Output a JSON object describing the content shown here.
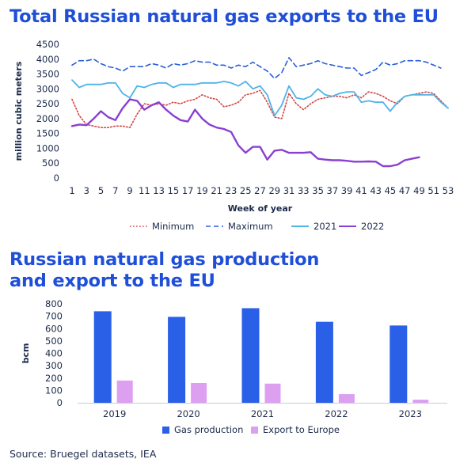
{
  "charts": [
    {
      "title": "Total Russian natural gas exports to the EU",
      "chart_data": {
        "type": "line",
        "title": "Total Russian natural gas exports to the EU",
        "xlabel": "Week of year",
        "ylabel": "million cubic meters",
        "xlim": [
          1,
          53
        ],
        "ylim": [
          0,
          4500
        ],
        "x_ticks": [
          "1",
          "3",
          "5",
          "7",
          "9",
          "11",
          "13",
          "15",
          "17",
          "19",
          "21",
          "23",
          "25",
          "27",
          "29",
          "31",
          "33",
          "35",
          "37",
          "39",
          "41",
          "43",
          "45",
          "47",
          "49",
          "51",
          "53"
        ],
        "y_ticks": [
          "0",
          "500",
          "1000",
          "1500",
          "2000",
          "2500",
          "3000",
          "3500",
          "4000",
          "4500"
        ],
        "grid": false,
        "legend": "bottom",
        "series": [
          {
            "name": "Minimum",
            "color": "#d64545",
            "style": "dotted",
            "x": [
              1,
              2,
              3,
              4,
              5,
              6,
              7,
              8,
              9,
              10,
              11,
              12,
              13,
              14,
              15,
              16,
              17,
              18,
              19,
              20,
              21,
              22,
              23,
              24,
              25,
              26,
              27,
              28,
              29,
              30,
              31,
              32,
              33,
              34,
              35,
              36,
              37,
              38,
              39,
              40,
              41,
              42,
              43,
              44,
              45,
              46,
              47,
              48,
              49,
              50,
              51,
              52,
              53
            ],
            "values": [
              2650,
              2100,
              1800,
              1750,
              1700,
              1700,
              1750,
              1750,
              1700,
              2150,
              2500,
              2450,
              2500,
              2450,
              2550,
              2500,
              2600,
              2650,
              2800,
              2700,
              2650,
              2400,
              2450,
              2550,
              2800,
              2850,
              2950,
              2550,
              2050,
              2000,
              2850,
              2500,
              2300,
              2500,
              2650,
              2700,
              2750,
              2750,
              2700,
              2800,
              2700,
              2900,
              2850,
              2750,
              2600,
              2500,
              2750,
              2800,
              2850,
              2900,
              2850,
              2600,
              2350
            ]
          },
          {
            "name": "Maximum",
            "color": "#2a5fd6",
            "style": "dashed",
            "x": [
              1,
              2,
              3,
              4,
              5,
              6,
              7,
              8,
              9,
              10,
              11,
              12,
              13,
              14,
              15,
              16,
              17,
              18,
              19,
              20,
              21,
              22,
              23,
              24,
              25,
              26,
              27,
              28,
              29,
              30,
              31,
              32,
              33,
              34,
              35,
              36,
              37,
              38,
              39,
              40,
              41,
              42,
              43,
              44,
              45,
              46,
              47,
              48,
              49,
              50,
              51,
              52
            ],
            "values": [
              3800,
              3950,
              3950,
              4000,
              3850,
              3750,
              3700,
              3600,
              3750,
              3750,
              3750,
              3850,
              3800,
              3700,
              3850,
              3800,
              3850,
              3950,
              3900,
              3900,
              3800,
              3800,
              3700,
              3800,
              3750,
              3900,
              3750,
              3600,
              3350,
              3550,
              4050,
              3750,
              3800,
              3850,
              3950,
              3850,
              3800,
              3750,
              3700,
              3700,
              3450,
              3550,
              3650,
              3900,
              3800,
              3850,
              3950,
              3950,
              3950,
              3900,
              3800,
              3700
            ]
          },
          {
            "name": "2021",
            "color": "#4fb3e8",
            "style": "solid",
            "x": [
              1,
              2,
              3,
              4,
              5,
              6,
              7,
              8,
              9,
              10,
              11,
              12,
              13,
              14,
              15,
              16,
              17,
              18,
              19,
              20,
              21,
              22,
              23,
              24,
              25,
              26,
              27,
              28,
              29,
              30,
              31,
              32,
              33,
              34,
              35,
              36,
              37,
              38,
              39,
              40,
              41,
              42,
              43,
              44,
              45,
              46,
              47,
              48,
              49,
              50,
              51,
              52,
              53
            ],
            "values": [
              3300,
              3050,
              3150,
              3150,
              3150,
              3200,
              3200,
              2850,
              2700,
              3100,
              3050,
              3150,
              3200,
              3200,
              3050,
              3150,
              3150,
              3150,
              3200,
              3200,
              3200,
              3250,
              3200,
              3100,
              3250,
              3000,
              3100,
              2800,
              2100,
              2450,
              3100,
              2700,
              2650,
              2750,
              3000,
              2800,
              2750,
              2850,
              2900,
              2900,
              2550,
              2600,
              2550,
              2550,
              2250,
              2550,
              2750,
              2800,
              2800,
              2800,
              2800,
              2550,
              2350
            ]
          },
          {
            "name": "2022",
            "color": "#8a3fd1",
            "style": "solid",
            "x": [
              1,
              2,
              3,
              4,
              5,
              6,
              7,
              8,
              9,
              10,
              11,
              12,
              13,
              14,
              15,
              16,
              17,
              18,
              19,
              20,
              21,
              22,
              23,
              24,
              25,
              26,
              27,
              28,
              29,
              30,
              31,
              32,
              33,
              34,
              35,
              36,
              37,
              38,
              39,
              40,
              41,
              42,
              43,
              44,
              45,
              46,
              47,
              48,
              49
            ],
            "values": [
              1750,
              1800,
              1780,
              2000,
              2250,
              2050,
              1950,
              2350,
              2650,
              2600,
              2300,
              2450,
              2550,
              2300,
              2100,
              1950,
              1900,
              2300,
              2000,
              1800,
              1700,
              1650,
              1550,
              1100,
              850,
              1050,
              1050,
              620,
              920,
              950,
              850,
              850,
              850,
              870,
              650,
              620,
              600,
              600,
              580,
              550,
              550,
              560,
              550,
              400,
              400,
              450,
              600,
              650,
              700
            ]
          }
        ]
      },
      "legend_labels": [
        "Minimum",
        "Maximum",
        "2021",
        "2022"
      ]
    },
    {
      "title": "Russian natural gas production and export to the EU",
      "title_lines": [
        "Russian natural gas production",
        "and export to the EU"
      ],
      "chart_data": {
        "type": "bar",
        "title": "Russian natural gas production and export to the EU",
        "xlabel": "",
        "ylabel": "bcm",
        "categories": [
          "2019",
          "2020",
          "2021",
          "2022",
          "2023"
        ],
        "ylim": [
          0,
          800
        ],
        "y_ticks": [
          "0",
          "100",
          "200",
          "300",
          "400",
          "500",
          "600",
          "700",
          "800"
        ],
        "grid": false,
        "legend": "bottom",
        "series": [
          {
            "name": "Gas production",
            "color": "#2a5fe8",
            "values": [
              740,
              695,
              765,
              655,
              625
            ]
          },
          {
            "name": "Export to Europe",
            "color": "#dda0f0",
            "values": [
              180,
              160,
              155,
              70,
              25
            ]
          }
        ]
      }
    }
  ],
  "source": "Source: Bruegel datasets, IEA"
}
